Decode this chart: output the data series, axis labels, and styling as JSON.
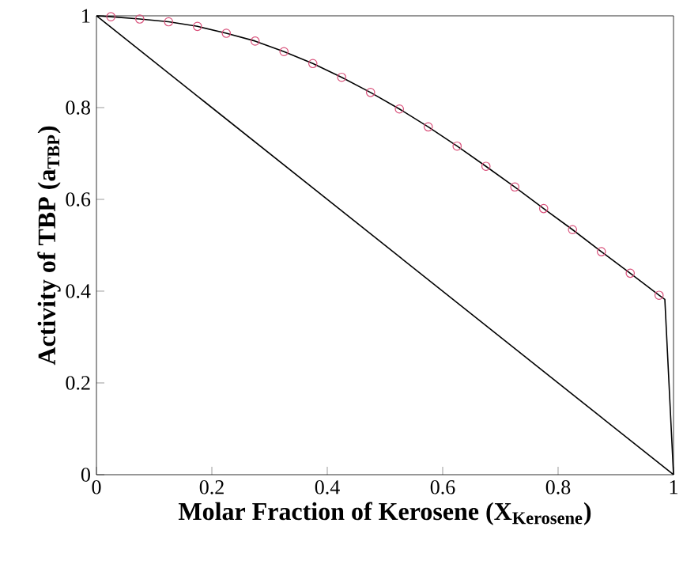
{
  "chart_data": {
    "type": "line",
    "xlabel": "Molar Fraction of Kerosene (X$_{Kerosene}$)",
    "ylabel": "Activity  of TBP (a$_{TBP}$)",
    "xlim": [
      0,
      1
    ],
    "ylim": [
      0,
      1
    ],
    "xticks": [
      0,
      0.2,
      0.4,
      0.6,
      0.8,
      1
    ],
    "yticks": [
      0,
      0.2,
      0.4,
      0.6,
      0.8,
      1
    ],
    "series": [
      {
        "color": "#000000",
        "x": [
          0,
          1
        ],
        "values": [
          1,
          0
        ]
      },
      {
        "color": "#000000",
        "x": [
          0,
          0.025,
          0.075,
          0.125,
          0.175,
          0.225,
          0.275,
          0.325,
          0.375,
          0.425,
          0.475,
          0.525,
          0.575,
          0.625,
          0.675,
          0.725,
          0.775,
          0.825,
          0.875,
          0.925,
          0.975,
          0.985,
          1
        ],
        "values": [
          1,
          0.998,
          0.993,
          0.987,
          0.977,
          0.962,
          0.945,
          0.922,
          0.896,
          0.866,
          0.833,
          0.797,
          0.758,
          0.716,
          0.672,
          0.627,
          0.58,
          0.534,
          0.486,
          0.439,
          0.391,
          0.382,
          0
        ]
      },
      {
        "type": "scatter",
        "color": "#d9507a",
        "marker": "circle",
        "x": [
          0.025,
          0.075,
          0.125,
          0.175,
          0.225,
          0.275,
          0.325,
          0.375,
          0.425,
          0.475,
          0.525,
          0.575,
          0.625,
          0.675,
          0.725,
          0.775,
          0.825,
          0.875,
          0.925,
          0.975
        ],
        "values": [
          0.998,
          0.993,
          0.987,
          0.977,
          0.962,
          0.945,
          0.922,
          0.896,
          0.866,
          0.833,
          0.797,
          0.758,
          0.716,
          0.672,
          0.627,
          0.58,
          0.534,
          0.486,
          0.439,
          0.391
        ]
      }
    ]
  }
}
